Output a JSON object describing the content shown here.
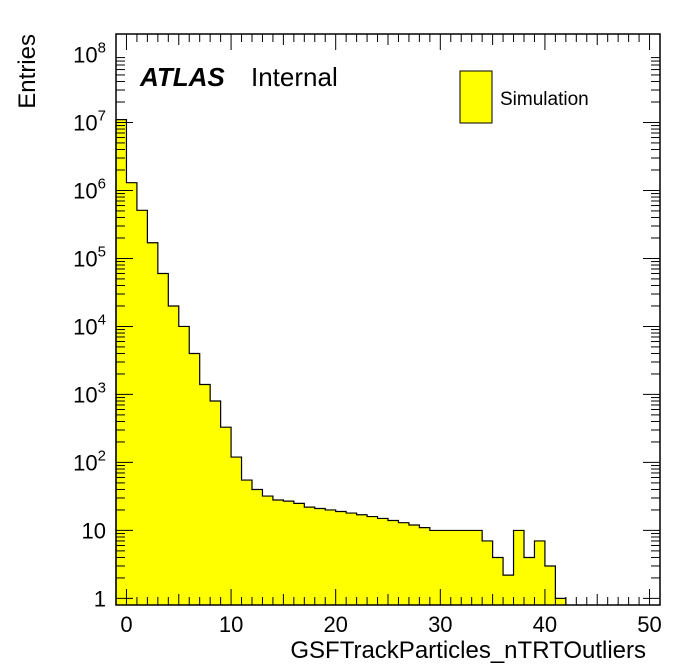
{
  "chart_data": {
    "type": "bar",
    "xlabel": "GSFTrackParticles_nTRTOutliers",
    "ylabel": "Entries",
    "xlim": [
      -1,
      51
    ],
    "ylim": [
      0.8,
      200000000
    ],
    "y_scale": "log",
    "x_ticks": [
      0,
      10,
      20,
      30,
      40,
      50
    ],
    "x_tick_labels": [
      "0",
      "10",
      "20",
      "30",
      "40",
      "50"
    ],
    "y_ticks": [
      {
        "value": 1,
        "base": "1",
        "exp": ""
      },
      {
        "value": 10,
        "base": "10",
        "exp": ""
      },
      {
        "value": 100,
        "base": "10",
        "exp": "2"
      },
      {
        "value": 1000,
        "base": "10",
        "exp": "3"
      },
      {
        "value": 10000,
        "base": "10",
        "exp": "4"
      },
      {
        "value": 100000,
        "base": "10",
        "exp": "5"
      },
      {
        "value": 1000000,
        "base": "10",
        "exp": "6"
      },
      {
        "value": 10000000,
        "base": "10",
        "exp": "7"
      },
      {
        "value": 100000000,
        "base": "10",
        "exp": "8"
      }
    ],
    "label_main": "ATLAS",
    "label_sub": "Internal",
    "legend": {
      "entry": "Simulation",
      "placement": "top-right"
    },
    "fill_color": "#ffff00",
    "line_color": "#000000",
    "series": [
      {
        "bin_edges": [
          -1,
          0,
          1,
          2,
          3,
          4,
          5,
          6,
          7,
          8,
          9,
          10,
          11,
          12,
          13,
          14,
          15,
          16,
          17,
          18,
          19,
          20,
          21,
          22,
          23,
          24,
          25,
          26,
          27,
          28,
          29,
          30,
          31,
          32,
          33,
          34,
          35,
          36,
          37,
          38,
          39,
          40,
          41,
          42
        ],
        "values": [
          11000000,
          1300000,
          510000,
          170000,
          60000,
          20000,
          10000,
          4000,
          1400,
          800,
          330,
          120,
          55,
          40,
          32,
          28,
          27,
          25,
          22,
          21,
          20,
          19,
          18,
          17,
          16,
          15,
          14,
          13,
          12,
          11,
          10,
          10,
          10,
          10,
          10,
          7,
          4,
          2.2,
          10,
          4,
          7,
          3,
          1
        ]
      }
    ]
  }
}
